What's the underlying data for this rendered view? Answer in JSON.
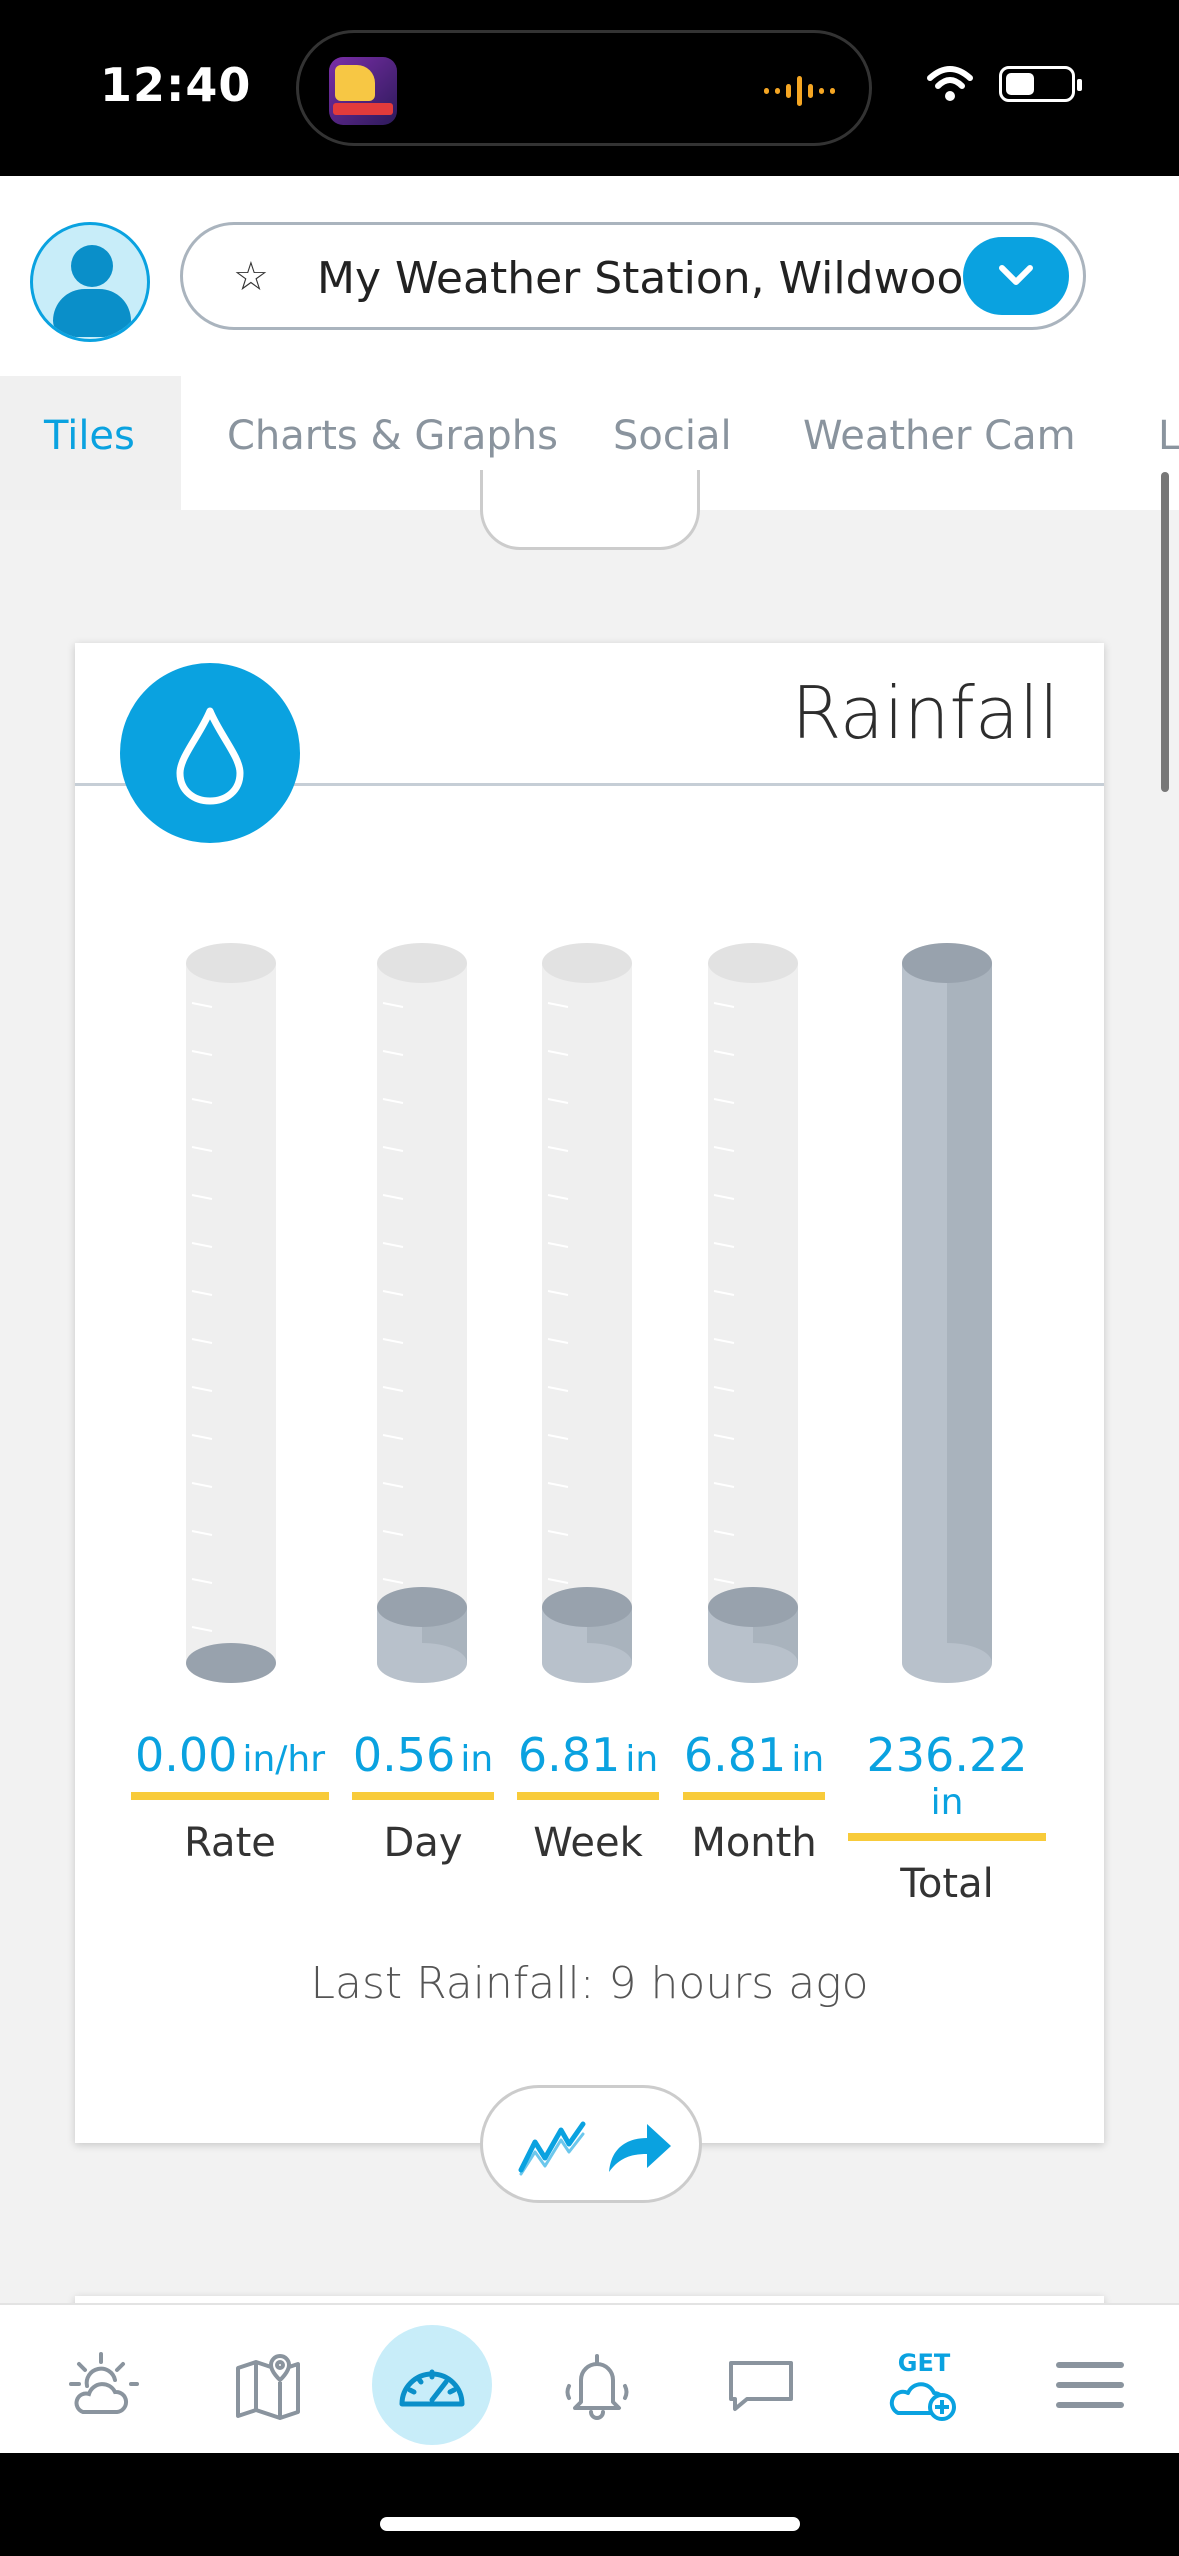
{
  "status_bar": {
    "time": "12:40",
    "island_app_icon": "cheese-game-app-icon",
    "wave_icon": "audio-waveform-icon",
    "wifi_icon": "wifi-icon",
    "battery_icon": "battery-icon",
    "battery_level": 0.45
  },
  "header": {
    "avatar_icon": "user-avatar-icon",
    "favorite_icon": "star-outline-icon",
    "station_name": "My Weather Station, Wildwood",
    "dropdown_icon": "chevron-down-icon"
  },
  "tabs": [
    {
      "label": "Tiles",
      "active": true
    },
    {
      "label": "Charts & Graphs",
      "active": false
    },
    {
      "label": "Social",
      "active": false
    },
    {
      "label": "Weather Cam",
      "active": false
    },
    {
      "label": "L",
      "active": false
    }
  ],
  "rainfall_card": {
    "title": "Rainfall",
    "icon": "raindrop-icon",
    "gauges": [
      {
        "value": "0.00",
        "unit": "in/hr",
        "label": "Rate",
        "fill": 0.0
      },
      {
        "value": "0.56",
        "unit": "in",
        "label": "Day",
        "fill": 0.08
      },
      {
        "value": "6.81",
        "unit": "in",
        "label": "Week",
        "fill": 0.08
      },
      {
        "value": "6.81",
        "unit": "in",
        "label": "Month",
        "fill": 0.08
      },
      {
        "value": "236.22",
        "unit": "in",
        "label": "Total",
        "fill": 1.0
      }
    ],
    "last_rainfall": "Last Rainfall: 9 hours ago",
    "actions": [
      {
        "icon": "line-chart-icon"
      },
      {
        "icon": "share-arrow-icon"
      }
    ]
  },
  "bottom_nav": [
    {
      "icon": "sun-cloud-icon",
      "active": false
    },
    {
      "icon": "map-pin-icon",
      "active": false
    },
    {
      "icon": "gauge-dashboard-icon",
      "active": true
    },
    {
      "icon": "bell-alert-icon",
      "active": false
    },
    {
      "icon": "chat-bubble-icon",
      "active": false
    },
    {
      "icon": "get-cloud-plus-icon",
      "label": "GET",
      "active": false
    },
    {
      "icon": "hamburger-menu-icon",
      "active": false
    }
  ],
  "colors": {
    "accent": "#0aa2e0",
    "underline": "#f8cb3a",
    "tube_empty": "#efefef",
    "tube_fill": "#b8c1cb"
  }
}
